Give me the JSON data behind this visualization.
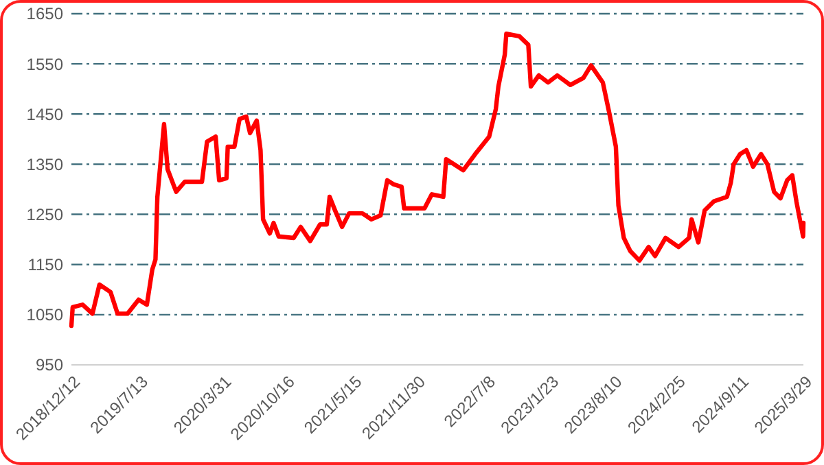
{
  "chart_data": {
    "type": "line",
    "grid": "y",
    "line_style": "solid",
    "marker": "none",
    "xlim": [
      "2018-12-12",
      "2025-03-29"
    ],
    "xticks": [
      {
        "value": "2018-12-12",
        "label": "2018/12/12"
      },
      {
        "value": "2019-07-13",
        "label": "2019/7/13"
      },
      {
        "value": "2020-03-31",
        "label": "2020/3/31"
      },
      {
        "value": "2020-10-16",
        "label": "2020/10/16"
      },
      {
        "value": "2021-05-15",
        "label": "2021/5/15"
      },
      {
        "value": "2021-11-30",
        "label": "2021/11/30"
      },
      {
        "value": "2022-07-08",
        "label": "2022/7/8"
      },
      {
        "value": "2023-01-23",
        "label": "2023/1/23"
      },
      {
        "value": "2023-08-10",
        "label": "2023/8/10"
      },
      {
        "value": "2024-02-25",
        "label": "2024/2/25"
      },
      {
        "value": "2024-09-11",
        "label": "2024/9/11"
      },
      {
        "value": "2025-03-29",
        "label": "2025/3/29"
      }
    ],
    "ylim": [
      950,
      1650
    ],
    "yticks": [
      950,
      1050,
      1150,
      1250,
      1350,
      1450,
      1550,
      1650
    ],
    "x": [
      "2018-12-12",
      "2018-12-16",
      "2019-01-16",
      "2019-02-16",
      "2019-03-10",
      "2019-04-14",
      "2019-05-06",
      "2019-06-06",
      "2019-07-11",
      "2019-08-06",
      "2019-08-23",
      "2019-09-02",
      "2019-09-08",
      "2019-09-29",
      "2019-10-10",
      "2019-11-06",
      "2019-12-03",
      "2020-01-26",
      "2020-02-11",
      "2020-03-09",
      "2020-03-20",
      "2020-04-12",
      "2020-04-16",
      "2020-05-07",
      "2020-05-23",
      "2020-06-13",
      "2020-06-25",
      "2020-07-16",
      "2020-07-28",
      "2020-08-05",
      "2020-08-26",
      "2020-09-07",
      "2020-09-23",
      "2020-11-09",
      "2020-12-01",
      "2020-12-31",
      "2021-01-31",
      "2021-02-21",
      "2021-03-02",
      "2021-03-19",
      "2021-04-10",
      "2021-05-02",
      "2021-06-13",
      "2021-07-11",
      "2021-08-09",
      "2021-08-30",
      "2021-09-19",
      "2021-10-14",
      "2021-10-22",
      "2021-11-12",
      "2021-12-25",
      "2022-01-17",
      "2022-02-22",
      "2022-03-03",
      "2022-04-26",
      "2022-06-02",
      "2022-07-16",
      "2022-08-06",
      "2022-08-14",
      "2022-09-03",
      "2022-09-08",
      "2022-10-19",
      "2022-11-16",
      "2022-11-24",
      "2022-12-19",
      "2023-01-17",
      "2023-02-15",
      "2023-03-28",
      "2023-05-08",
      "2023-06-01",
      "2023-07-08",
      "2023-07-29",
      "2023-08-18",
      "2023-08-26",
      "2023-09-12",
      "2023-10-02",
      "2023-10-31",
      "2023-11-29",
      "2023-12-19",
      "2024-01-21",
      "2024-03-02",
      "2024-04-04",
      "2024-04-12",
      "2024-05-03",
      "2024-05-23",
      "2024-06-21",
      "2024-08-01",
      "2024-08-13",
      "2024-08-22",
      "2024-09-11",
      "2024-10-01",
      "2024-10-22",
      "2024-11-16",
      "2024-12-06",
      "2024-12-27",
      "2025-01-16",
      "2025-02-06",
      "2025-02-22",
      "2025-03-07",
      "2025-03-28",
      "2025-03-29"
    ],
    "series": [
      {
        "color": "#ff0000",
        "values": [
          1028,
          1065,
          1070,
          1052,
          1110,
          1095,
          1052,
          1052,
          1080,
          1070,
          1140,
          1160,
          1285,
          1430,
          1340,
          1295,
          1315,
          1315,
          1395,
          1405,
          1318,
          1322,
          1385,
          1385,
          1440,
          1445,
          1412,
          1437,
          1378,
          1240,
          1212,
          1233,
          1206,
          1203,
          1225,
          1197,
          1230,
          1230,
          1285,
          1258,
          1225,
          1252,
          1252,
          1240,
          1248,
          1318,
          1310,
          1305,
          1262,
          1262,
          1262,
          1290,
          1285,
          1360,
          1338,
          1370,
          1405,
          1460,
          1505,
          1568,
          1610,
          1605,
          1588,
          1505,
          1527,
          1513,
          1527,
          1508,
          1522,
          1547,
          1513,
          1450,
          1385,
          1268,
          1203,
          1177,
          1158,
          1185,
          1167,
          1203,
          1185,
          1203,
          1240,
          1194,
          1258,
          1276,
          1285,
          1313,
          1350,
          1370,
          1378,
          1345,
          1370,
          1350,
          1295,
          1282,
          1318,
          1328,
          1276,
          1206,
          1233
        ]
      }
    ]
  }
}
